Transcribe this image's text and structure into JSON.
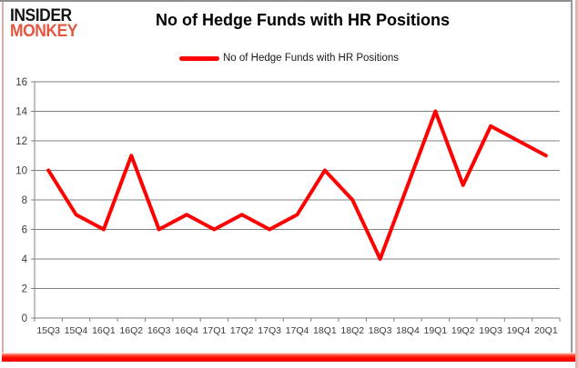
{
  "header": {
    "logo_line1": "INSIDER",
    "logo_line2": "MONKEY",
    "title": "No of Hedge Funds with HR Positions"
  },
  "legend": {
    "label": "No of Hedge Funds with HR Positions"
  },
  "chart_data": {
    "type": "line",
    "title": "No of Hedge Funds with HR Positions",
    "categories": [
      "15Q3",
      "15Q4",
      "16Q1",
      "16Q2",
      "16Q3",
      "16Q4",
      "17Q1",
      "17Q2",
      "17Q3",
      "17Q4",
      "18Q1",
      "18Q2",
      "18Q3",
      "18Q4",
      "19Q1",
      "19Q2",
      "19Q3",
      "19Q4",
      "20Q1"
    ],
    "series": [
      {
        "name": "No of Hedge Funds with HR Positions",
        "color": "#ff0000",
        "values": [
          10,
          7,
          6,
          11,
          6,
          7,
          6,
          7,
          6,
          7,
          10,
          8,
          4,
          9,
          14,
          9,
          13,
          12,
          11
        ]
      }
    ],
    "xlabel": "",
    "ylabel": "",
    "ylim": [
      0,
      16
    ],
    "y_tick_step": 2,
    "grid": true,
    "legend_position": "top-center"
  },
  "colors": {
    "series_line": "#ff0000",
    "grid": "#808080",
    "axis_text": "#3c3c3c",
    "logo_primary": "#151515",
    "logo_accent": "#e2573f",
    "bottom_bar": "#ff0000",
    "frame_grey": "#8f8f8f",
    "frame_pink": "#e6b3ae"
  }
}
